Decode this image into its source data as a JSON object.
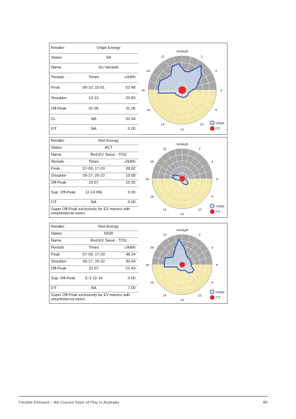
{
  "colors": {
    "usage_fill": "#cdd9f1",
    "usage_stroke": "#2a4fb2",
    "fit_fill": "#e02a2a",
    "night_band": "#a8a8a8",
    "day_band": "#f2e8a8",
    "grid": "#ffffff"
  },
  "labels": {
    "retailer": "Retailer",
    "states": "States",
    "name": "Name",
    "periods": "Periods",
    "times": "Times",
    "ckwh": "c/kWh"
  },
  "chart_labels": {
    "midnight": "midnight",
    "hours": [
      "22",
      "2",
      "20",
      "4",
      "18",
      "6",
      "16",
      "8",
      "14",
      "10",
      "12"
    ],
    "usage": "usage",
    "fit": "FIT"
  },
  "panels": [
    {
      "retailer": "Origin Energy",
      "states": "SA",
      "name": "Go Variable",
      "rows": [
        {
          "label": "Peak",
          "times": "06-10, 15-01",
          "rate": "52.48"
        },
        {
          "label": "Shoulder",
          "times": "10-15",
          "rate": "25.83"
        },
        {
          "label": "Off-Peak",
          "times": "01-06",
          "rate": "31.06"
        },
        {
          "label": "CL",
          "times": "NA",
          "rate": "20.94"
        },
        {
          "label": "FIT",
          "times": "NA",
          "rate": "6.00"
        }
      ],
      "note": ""
    },
    {
      "retailer": "Red Energy",
      "states": "ACT",
      "name": "Red EV Saver - TOU",
      "rows": [
        {
          "label": "Peak",
          "times": "07-09, 17-20",
          "rate": "28.82"
        },
        {
          "label": "Shoulder",
          "times": "09-17, 20-22",
          "rate": "19.58"
        },
        {
          "label": "Off-Peak",
          "times": "22-07",
          "rate": "15.95"
        },
        {
          "label": "Sup. Off-Peak",
          "times": "12-14 WE",
          "rate": "0.00"
        },
        {
          "label": "FIT",
          "times": "NA",
          "rate": "6.00"
        }
      ],
      "note": "Super Off-Peak exclusively for EV owners with smart/interval meter."
    },
    {
      "retailer": "Red Energy",
      "states": "NSW",
      "name": "Red EV Saver - TOU",
      "rows": [
        {
          "label": "Peak",
          "times": "07-09, 17-20",
          "rate": "48.24"
        },
        {
          "label": "Shoulder",
          "times": "09-17, 20-22",
          "rate": "30.64"
        },
        {
          "label": "Off-Peak",
          "times": "22-07",
          "rate": "21.43"
        },
        {
          "label": "Sup. Off-Peak",
          "times": "S-S 12-14",
          "rate": "0.00"
        },
        {
          "label": "FIT",
          "times": "NA",
          "rate": "7.00"
        }
      ],
      "note": "Super Off-Peak exclusively for EV owners with smart/interval meter."
    }
  ],
  "chart_data": [
    {
      "type": "radar",
      "usage": [
        0.55,
        0.58,
        0.9,
        0.7,
        0.5,
        0.4,
        0.25,
        0.2,
        0.22,
        0.22,
        0.22,
        0.22,
        0.2,
        0.2,
        0.2,
        0.22,
        0.22,
        0.7,
        0.7,
        0.7,
        0.58,
        0.55,
        0.75,
        0.78
      ],
      "fit": 0.12
    },
    {
      "type": "radar",
      "usage": [
        0.1,
        0.1,
        0.1,
        0.1,
        0.1,
        0.1,
        0.1,
        0.18,
        0.25,
        0.25,
        0.2,
        0.15,
        0.1,
        0.1,
        0.1,
        0.1,
        0.12,
        0.22,
        0.32,
        0.32,
        0.18,
        0.1,
        0.1,
        0.1
      ],
      "fit": 0.1
    },
    {
      "type": "radar",
      "usage": [
        0.55,
        0.35,
        0.3,
        0.3,
        0.3,
        0.3,
        0.3,
        0.42,
        0.42,
        0.35,
        0.2,
        0.2,
        0.2,
        0.2,
        0.2,
        0.2,
        0.2,
        0.6,
        0.6,
        0.6,
        0.4,
        0.45,
        0.6,
        0.85
      ],
      "fit": 0.1
    }
  ],
  "footer": {
    "text": "Flexible Demand – the Current State of Play in Australia",
    "page": "80"
  }
}
